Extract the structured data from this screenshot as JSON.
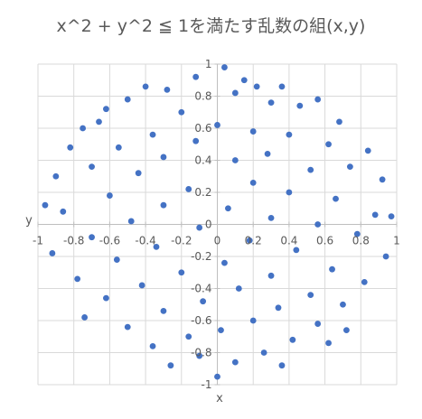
{
  "chart_data": {
    "type": "scatter",
    "title": "x^2 + y^2 ≦ 1を満たす乱数の組(x,y)",
    "xlabel": "x",
    "ylabel": "y",
    "xlim": [
      -1,
      1
    ],
    "ylim": [
      -1,
      1
    ],
    "grid": true,
    "legend": "none",
    "marker_color": "#4472C4",
    "x_ticks": [
      "-1",
      "-0.8",
      "-0.6",
      "-0.4",
      "-0.2",
      "0",
      "0.2",
      "0.4",
      "0.6",
      "0.8",
      "1"
    ],
    "y_ticks": [
      "-1",
      "-0.8",
      "-0.6",
      "-0.4",
      "-0.2",
      "0",
      "0.2",
      "0.4",
      "0.6",
      "0.8",
      "1"
    ],
    "series": [
      {
        "points": [
          [
            0.04,
            0.98
          ],
          [
            -0.12,
            0.92
          ],
          [
            0.15,
            0.9
          ],
          [
            0.22,
            0.86
          ],
          [
            0.36,
            0.86
          ],
          [
            -0.4,
            0.86
          ],
          [
            -0.28,
            0.84
          ],
          [
            0.1,
            0.82
          ],
          [
            0.3,
            0.76
          ],
          [
            0.46,
            0.74
          ],
          [
            0.56,
            0.78
          ],
          [
            -0.5,
            0.78
          ],
          [
            -0.62,
            0.72
          ],
          [
            -0.2,
            0.7
          ],
          [
            0.68,
            0.64
          ],
          [
            -0.66,
            0.64
          ],
          [
            0.0,
            0.62
          ],
          [
            0.2,
            0.58
          ],
          [
            -0.36,
            0.56
          ],
          [
            0.4,
            0.56
          ],
          [
            -0.12,
            0.52
          ],
          [
            0.62,
            0.5
          ],
          [
            -0.55,
            0.48
          ],
          [
            -0.82,
            0.48
          ],
          [
            0.84,
            0.46
          ],
          [
            0.28,
            0.44
          ],
          [
            -0.3,
            0.42
          ],
          [
            0.1,
            0.4
          ],
          [
            0.74,
            0.36
          ],
          [
            -0.7,
            0.36
          ],
          [
            0.52,
            0.34
          ],
          [
            -0.44,
            0.32
          ],
          [
            -0.9,
            0.3
          ],
          [
            0.92,
            0.28
          ],
          [
            0.2,
            0.26
          ],
          [
            -0.16,
            0.22
          ],
          [
            0.4,
            0.2
          ],
          [
            -0.6,
            0.18
          ],
          [
            0.66,
            0.16
          ],
          [
            -0.3,
            0.12
          ],
          [
            0.06,
            0.1
          ],
          [
            -0.86,
            0.08
          ],
          [
            0.88,
            0.06
          ],
          [
            0.3,
            0.04
          ],
          [
            -0.48,
            0.02
          ],
          [
            0.56,
            0.0
          ],
          [
            -0.1,
            -0.02
          ],
          [
            0.78,
            -0.06
          ],
          [
            -0.7,
            -0.08
          ],
          [
            0.18,
            -0.1
          ],
          [
            -0.34,
            -0.14
          ],
          [
            0.44,
            -0.16
          ],
          [
            -0.92,
            -0.18
          ],
          [
            0.94,
            -0.2
          ],
          [
            -0.56,
            -0.22
          ],
          [
            0.04,
            -0.24
          ],
          [
            0.64,
            -0.28
          ],
          [
            -0.2,
            -0.3
          ],
          [
            0.3,
            -0.32
          ],
          [
            -0.78,
            -0.34
          ],
          [
            0.82,
            -0.36
          ],
          [
            -0.42,
            -0.38
          ],
          [
            0.12,
            -0.4
          ],
          [
            0.52,
            -0.44
          ],
          [
            -0.62,
            -0.46
          ],
          [
            -0.08,
            -0.48
          ],
          [
            0.7,
            -0.5
          ],
          [
            0.34,
            -0.52
          ],
          [
            -0.3,
            -0.54
          ],
          [
            -0.74,
            -0.58
          ],
          [
            0.2,
            -0.6
          ],
          [
            0.56,
            -0.62
          ],
          [
            -0.5,
            -0.64
          ],
          [
            0.02,
            -0.66
          ],
          [
            -0.16,
            -0.7
          ],
          [
            0.42,
            -0.72
          ],
          [
            0.62,
            -0.74
          ],
          [
            -0.36,
            -0.76
          ],
          [
            0.26,
            -0.8
          ],
          [
            -0.1,
            -0.82
          ],
          [
            0.1,
            -0.86
          ],
          [
            -0.26,
            -0.88
          ],
          [
            0.36,
            -0.88
          ],
          [
            0.0,
            -0.95
          ],
          [
            -0.96,
            0.12
          ],
          [
            0.97,
            0.05
          ],
          [
            -0.75,
            0.6
          ],
          [
            0.72,
            -0.66
          ]
        ]
      }
    ]
  }
}
